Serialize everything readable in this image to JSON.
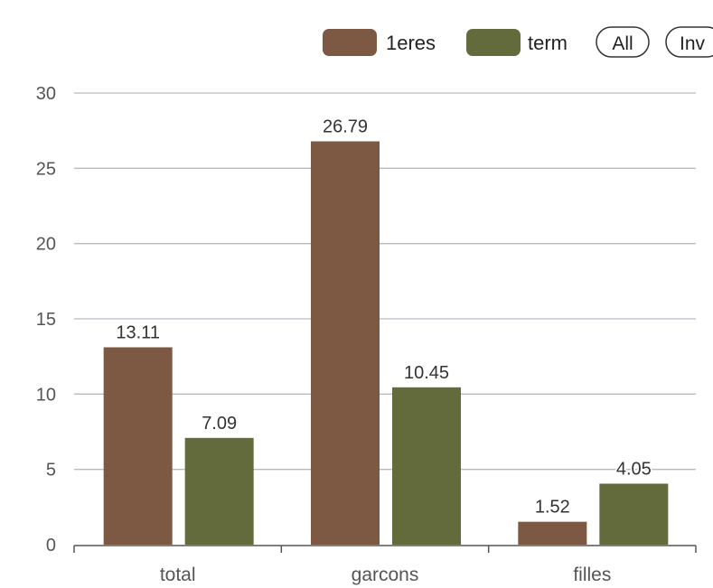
{
  "chart_data": {
    "type": "bar",
    "categories": [
      "total",
      "garcons",
      "filles"
    ],
    "series": [
      {
        "name": "1eres",
        "values": [
          13.11,
          26.79,
          1.52
        ],
        "labels": [
          "13.11",
          "26.79",
          "1.52"
        ],
        "color": "#7d5843"
      },
      {
        "name": "term",
        "values": [
          7.09,
          10.45,
          4.05
        ],
        "labels": [
          "7.09",
          "10.45",
          "4.05"
        ],
        "color": "#636a3c"
      }
    ],
    "ylim": [
      0,
      30
    ],
    "yticks": [
      0,
      5,
      10,
      15,
      20,
      25,
      30
    ],
    "grid": true,
    "legend_position": "top-right"
  },
  "legend_buttons": [
    {
      "label": "All"
    },
    {
      "label": "Inv"
    }
  ],
  "colors": {
    "grid": "#b9b9c4",
    "axis": "#555555"
  }
}
